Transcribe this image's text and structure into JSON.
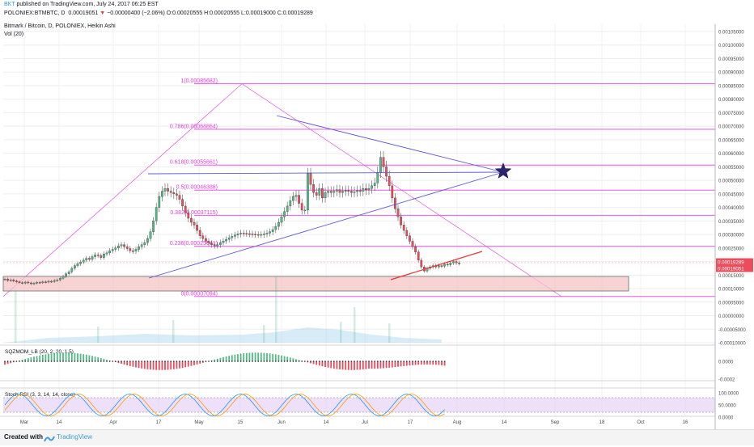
{
  "header": {
    "author": "BKT",
    "published": "published on TradingView.com, July 24, 2017 06:25 EST",
    "symbol": "POLONIEX:BTMBTC, D",
    "price": "0.00019051",
    "arrow": "▼",
    "change": "−0.00000400 (−2.06%)",
    "ohlc": "O:0.00020555 H:0.00020555 L:0.00019000 C:0.00019289",
    "colors": {
      "author": "#2196f3",
      "down": "#e53935",
      "text": "#131722"
    }
  },
  "chart_title": "Bitmark / Bitcoin, D, POLONIEX, Heikin Ashi",
  "vol_label": "Vol (20)",
  "footer": {
    "created_with": "Created with",
    "brand": "TradingView"
  },
  "colors": {
    "up": "#53b987",
    "down": "#eb4d5c",
    "fib": "#e83ce0",
    "trend_blue": "#5b5bd6",
    "support_red": "#e53935",
    "zone_fill": "#f5c4c4",
    "star": "#2c2570",
    "rsi_k": "#2196f3",
    "rsi_d": "#ff9800",
    "rsi_band": "#e1c7f5"
  },
  "chart_data": [
    {
      "type": "candlestick",
      "title": "Bitmark / Bitcoin, D, POLONIEX, Heikin Ashi",
      "x_ticks": [
        "Mar",
        "14",
        "Apr",
        "17",
        "May",
        "15",
        "Jun",
        "14",
        "Jul",
        "17",
        "Aug",
        "14",
        "Sep",
        "18",
        "Oct",
        "16"
      ],
      "y_ticks": [
        "0.00105000",
        "0.00100000",
        "0.00095000",
        "0.00090000",
        "0.00085000",
        "0.00080000",
        "0.00075000",
        "0.00070000",
        "0.00065000",
        "0.00060000",
        "0.00055000",
        "0.00050000",
        "0.00045000",
        "0.00040000",
        "0.00035000",
        "0.00030000",
        "0.00025000",
        "0.00020000",
        "0.00015000",
        "0.00010000",
        "0.00005000",
        "0.00000000",
        "-0.00005000",
        "-0.00010000"
      ],
      "ylim": [
        -0.0001,
        0.00108
      ],
      "price_labels": [
        "0.00019289",
        "0.00019051"
      ],
      "fib_levels": [
        {
          "label": "1(0.00085682)",
          "value": 0.00085682
        },
        {
          "label": "0.786(0.00068864)",
          "value": 0.00068864
        },
        {
          "label": "0.618(0.00055661)",
          "value": 0.00055661
        },
        {
          "label": "0.5(0.00046388)",
          "value": 0.00046388
        },
        {
          "label": "0.382(0.00037115)",
          "value": 0.00037115
        },
        {
          "label": "0.236(0.00025641)",
          "value": 0.00025641
        },
        {
          "label": "0(0.00007094)",
          "value": 7.094e-05
        }
      ],
      "closes": [
        0.000135,
        0.00013,
        0.000132,
        0.000128,
        0.000125,
        0.000122,
        0.00012,
        0.000124,
        0.000121,
        0.000118,
        0.00012,
        0.000123,
        0.000122,
        0.000125,
        0.000124,
        0.000127,
        0.000126,
        0.00013,
        0.000132,
        0.000138,
        0.000145,
        0.000155,
        0.000162,
        0.000175,
        0.000185,
        0.000192,
        0.000198,
        0.000205,
        0.000212,
        0.000208,
        0.000218,
        0.000225,
        0.000222,
        0.000215,
        0.000228,
        0.000232,
        0.00024,
        0.000245,
        0.00025,
        0.000258,
        0.000262,
        0.000255,
        0.000248,
        0.00024,
        0.000238,
        0.000245,
        0.000255,
        0.000262,
        0.00027,
        0.000285,
        0.00031,
        0.00035,
        0.0004,
        0.00044,
        0.00046,
        0.00047,
        0.00046,
        0.000455,
        0.00045,
        0.000445,
        0.00043,
        0.000405,
        0.00038,
        0.00036,
        0.000345,
        0.000335,
        0.000315,
        0.000295,
        0.000285,
        0.000275,
        0.000268,
        0.000262,
        0.000258,
        0.000262,
        0.00027,
        0.000276,
        0.000282,
        0.000288,
        0.000293,
        0.000298,
        0.000302,
        0.000305,
        0.000304,
        0.000303,
        0.000302,
        0.000301,
        0.0003,
        0.000299,
        0.0003,
        0.000302,
        0.000305,
        0.00031,
        0.000318,
        0.00033,
        0.000345,
        0.000365,
        0.000385,
        0.000405,
        0.000425,
        0.00044,
        0.000445,
        0.000415,
        0.00039,
        0.00039,
        0.000525,
        0.000485,
        0.000455,
        0.000445,
        0.00047,
        0.000435,
        0.000455,
        0.00046,
        0.000455,
        0.00046,
        0.000465,
        0.000455,
        0.00046,
        0.000462,
        0.00046,
        0.000455,
        0.000458,
        0.000462,
        0.00046,
        0.00047,
        0.000465,
        0.00047,
        0.00048,
        0.00049,
        0.00053,
        0.000585,
        0.00055,
        0.000515,
        0.00048,
        0.000435,
        0.000395,
        0.000365,
        0.000335,
        0.000315,
        0.000295,
        0.000275,
        0.000255,
        0.000235,
        0.000205,
        0.00018,
        0.000165,
        0.000175,
        0.00018,
        0.000185,
        0.00018,
        0.000185,
        0.000183,
        0.00019,
        0.000188,
        0.000195,
        0.0002,
        0.000195,
        0.00019289
      ],
      "trend_lines": [],
      "series": [
        {
          "name": "Vol (20)",
          "values": []
        }
      ]
    },
    {
      "type": "histogram",
      "title": "SQZMOM_LB (20, 2, 20, 1.5)",
      "y_ticks": [
        "0.0000",
        "-0.0002"
      ],
      "values": []
    },
    {
      "type": "line",
      "title": "Stoch RSI (3, 3, 14, 14, close)",
      "y_ticks": [
        "100.0000",
        "50.0000",
        "0.0000"
      ],
      "ylim": [
        0,
        100
      ],
      "series": [
        {
          "name": "K",
          "values": []
        },
        {
          "name": "D",
          "values": []
        }
      ]
    }
  ]
}
